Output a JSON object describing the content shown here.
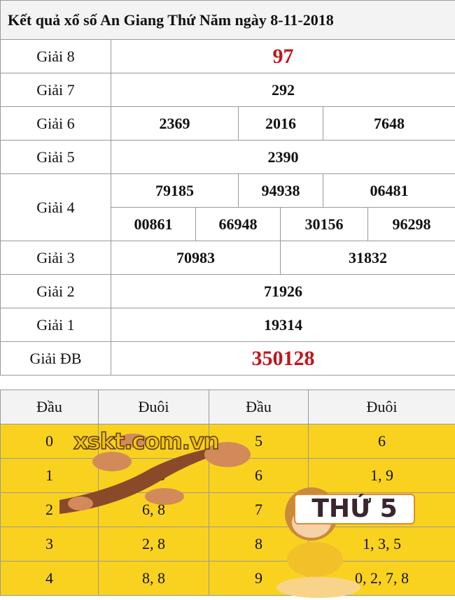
{
  "title": "Kết quả xổ số An Giang Thứ Năm ngày 8-11-2018",
  "prizes": {
    "g8": {
      "label": "Giải 8",
      "values": [
        "97"
      ]
    },
    "g7": {
      "label": "Giải 7",
      "values": [
        "292"
      ]
    },
    "g6": {
      "label": "Giải 6",
      "values": [
        "2369",
        "2016",
        "7648"
      ]
    },
    "g5": {
      "label": "Giải 5",
      "values": [
        "2390"
      ]
    },
    "g4": {
      "label": "Giải 4",
      "values": [
        "79185",
        "94938",
        "06481",
        "00861",
        "66948",
        "30156",
        "96298"
      ]
    },
    "g3": {
      "label": "Giải 3",
      "values": [
        "70983",
        "31832"
      ]
    },
    "g2": {
      "label": "Giải 2",
      "values": [
        "71926"
      ]
    },
    "g1": {
      "label": "Giải 1",
      "values": [
        "19314"
      ]
    },
    "gdb": {
      "label": "Giải ĐB",
      "values": [
        "350128"
      ]
    }
  },
  "loto": {
    "headers": [
      "Đầu",
      "Đuôi",
      "Đầu",
      "Đuôi"
    ],
    "rows": [
      {
        "d1": "0",
        "t1": "",
        "d2": "5",
        "t2": "6"
      },
      {
        "d1": "1",
        "t1": "4, 6",
        "d2": "6",
        "t2": "1, 9"
      },
      {
        "d1": "2",
        "t1": "6, 8",
        "d2": "7",
        "t2": ""
      },
      {
        "d1": "3",
        "t1": "2, 8",
        "d2": "8",
        "t2": "1, 3, 5"
      },
      {
        "d1": "4",
        "t1": "8, 8",
        "d2": "9",
        "t2": "0, 2, 7, 8"
      }
    ]
  },
  "overlay": {
    "badge": "THỨ 5",
    "watermark": "xskt.com.vn"
  },
  "colors": {
    "highlight": "#c0161c",
    "loto_bg": "#f9d21f"
  }
}
